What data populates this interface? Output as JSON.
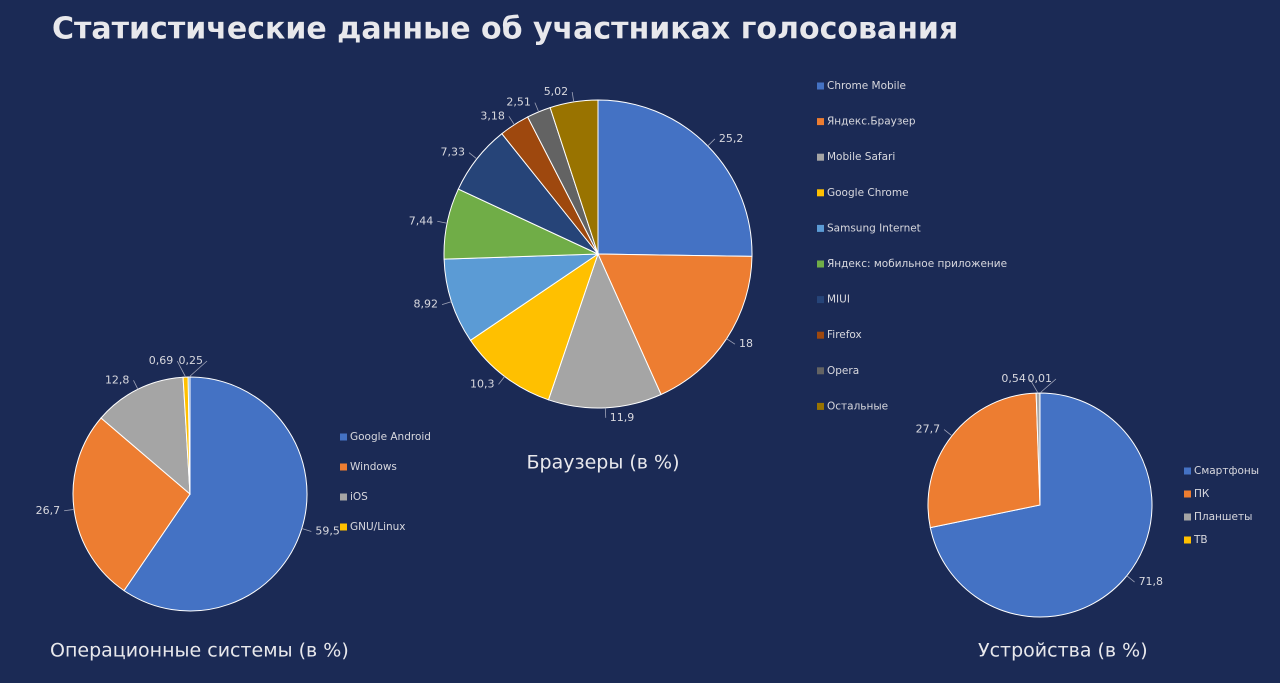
{
  "title": "Статистические данные об участниках голосования",
  "chart_data": [
    {
      "type": "pie",
      "title": "Браузеры (в %)",
      "categories": [
        "Chrome Mobile",
        "Яндекс.Браузер",
        "Mobile Safari",
        "Google Chrome",
        "Samsung Internet",
        "Яндекс: мобильное приложение",
        "MIUI",
        "Firefox",
        "Opera",
        "Остальные"
      ],
      "values": [
        25.2,
        18,
        11.9,
        10.3,
        8.92,
        7.44,
        7.33,
        3.18,
        2.51,
        5.02
      ],
      "value_labels": [
        "25,2",
        "18",
        "11,9",
        "10,3",
        "8,92",
        "7,44",
        "7,33",
        "3,18",
        "2,51",
        "5,02"
      ],
      "colors": [
        "#4472c4",
        "#ed7d31",
        "#a5a5a5",
        "#ffc000",
        "#5b9bd5",
        "#70ad47",
        "#264478",
        "#9e480e",
        "#636363",
        "#997300"
      ]
    },
    {
      "type": "pie",
      "title": "Операционные системы  (в %)",
      "categories": [
        "Google Android",
        "Windows",
        "iOS",
        "GNU/Linux",
        null
      ],
      "values": [
        59.5,
        26.7,
        12.8,
        0.69,
        0.25
      ],
      "value_labels": [
        "59,5",
        "26,7",
        "12,8",
        "0,69",
        "0,25"
      ],
      "colors": [
        "#4472c4",
        "#ed7d31",
        "#a5a5a5",
        "#ffc000",
        "#5b9bd5"
      ]
    },
    {
      "type": "pie",
      "title": "Устройства  (в %)",
      "categories": [
        "Смартфоны",
        "ПК",
        "Планшеты",
        "ТВ"
      ],
      "values": [
        71.8,
        27.7,
        0.54,
        0.01
      ],
      "value_labels": [
        "71,8",
        "27,7",
        "0,54",
        "0,01"
      ],
      "colors": [
        "#4472c4",
        "#ed7d31",
        "#a5a5a5",
        "#ffc000"
      ]
    }
  ]
}
